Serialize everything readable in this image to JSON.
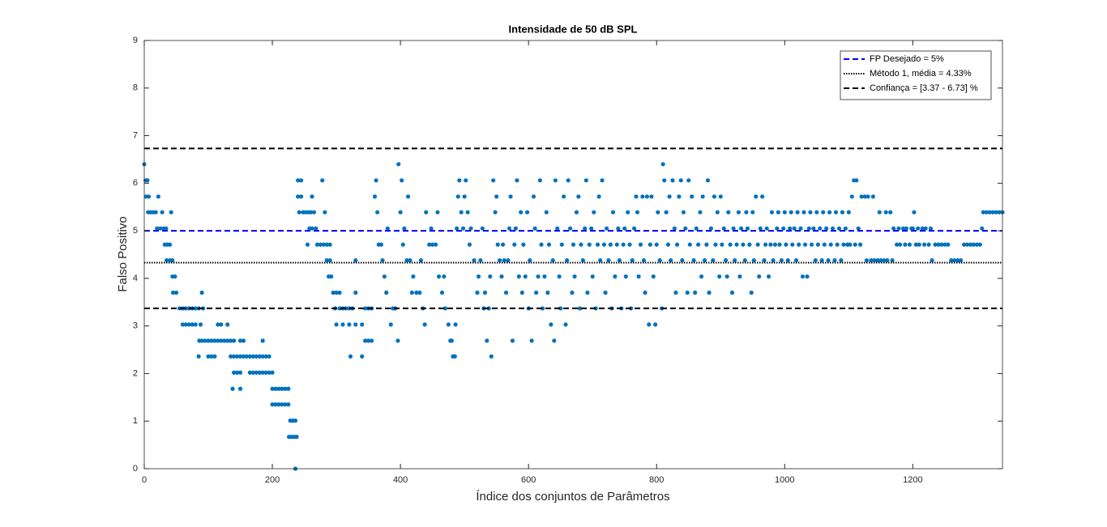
{
  "chart_data": {
    "type": "scatter",
    "title": "Intensidade de 50 dB SPL",
    "x_label": "Índice dos conjuntos de Parâmetros",
    "y_label": "Falso Positivo",
    "color": "#0072bd",
    "xlim": [
      0,
      1340
    ],
    "ylim": [
      0,
      9
    ],
    "xticks": [
      0,
      200,
      400,
      600,
      800,
      1000,
      1200
    ],
    "yticks": [
      0,
      1,
      2,
      3,
      4,
      5,
      6,
      7,
      8,
      9
    ],
    "legend_position": "top-right",
    "reference_lines": [
      {
        "name": "FP Desejado = 5%",
        "values": [
          5
        ],
        "color": "#0000ff",
        "style": "dashed"
      },
      {
        "name": "Método 1, média = 4.33%",
        "values": [
          4.33
        ],
        "color": "#000000",
        "style": "dotted"
      },
      {
        "name": "Confiança = [3.37 - 6.73] %",
        "values": [
          3.37,
          6.73
        ],
        "color": "#000000",
        "style": "dashed"
      }
    ],
    "x": [
      0,
      2,
      5,
      3,
      7,
      6,
      10,
      14,
      18,
      22,
      20,
      25,
      30,
      34,
      28,
      32,
      36,
      40,
      35,
      40,
      44,
      42,
      44,
      48,
      45,
      50,
      55,
      60,
      65,
      70,
      75,
      80,
      85,
      60,
      65,
      70,
      75,
      80,
      88,
      90,
      92,
      86,
      90,
      95,
      85,
      100,
      105,
      110,
      100,
      105,
      110,
      115,
      120,
      125,
      130,
      135,
      140,
      115,
      120,
      130,
      135,
      140,
      145,
      150,
      155,
      160,
      165,
      170,
      175,
      180,
      185,
      190,
      195,
      140,
      145,
      150,
      138,
      150,
      150,
      155,
      165,
      170,
      175,
      180,
      185,
      190,
      195,
      200,
      185,
      200,
      205,
      210,
      215,
      220,
      225,
      200,
      205,
      210,
      215,
      220,
      225,
      228,
      232,
      236,
      226,
      230,
      234,
      238,
      236,
      240,
      245,
      240,
      245,
      242,
      248,
      252,
      256,
      260,
      265,
      262,
      258,
      262,
      268,
      255,
      270,
      275,
      280,
      285,
      290,
      278,
      282,
      285,
      290,
      288,
      292,
      295,
      300,
      305,
      298,
      305,
      310,
      315,
      320,
      325,
      300,
      310,
      320,
      330,
      340,
      322,
      330,
      330,
      340,
      345,
      345,
      350,
      350,
      355,
      355,
      360,
      362,
      364,
      366,
      370,
      372,
      375,
      378,
      380,
      385,
      388,
      392,
      396,
      397,
      400,
      402,
      404,
      406,
      410,
      412,
      415,
      418,
      420,
      425,
      430,
      432,
      435,
      438,
      440,
      445,
      448,
      450,
      455,
      458,
      460,
      465,
      468,
      470,
      475,
      478,
      480,
      482,
      485,
      486,
      488,
      490,
      492,
      495,
      498,
      500,
      502,
      505,
      508,
      510,
      515,
      520,
      522,
      525,
      528,
      530,
      532,
      535,
      538,
      540,
      542,
      545,
      548,
      550,
      552,
      555,
      558,
      560,
      562,
      565,
      568,
      570,
      572,
      575,
      578,
      580,
      582,
      585,
      588,
      590,
      592,
      595,
      598,
      600,
      602,
      605,
      608,
      610,
      612,
      615,
      618,
      620,
      622,
      625,
      628,
      630,
      632,
      635,
      638,
      640,
      642,
      645,
      648,
      650,
      652,
      655,
      658,
      660,
      662,
      665,
      668,
      670,
      672,
      675,
      678,
      680,
      682,
      685,
      688,
      690,
      692,
      695,
      698,
      700,
      702,
      705,
      708,
      710,
      712,
      715,
      718,
      720,
      722,
      725,
      728,
      730,
      732,
      735,
      738,
      740,
      742,
      745,
      748,
      750,
      752,
      755,
      758,
      760,
      762,
      765,
      768,
      770,
      772,
      775,
      778,
      780,
      782,
      785,
      788,
      790,
      792,
      795,
      798,
      800,
      802,
      805,
      808,
      810,
      812,
      815,
      818,
      820,
      822,
      825,
      828,
      830,
      832,
      835,
      838,
      840,
      842,
      845,
      848,
      850,
      852,
      855,
      858,
      860,
      862,
      865,
      868,
      870,
      872,
      875,
      878,
      880,
      882,
      885,
      888,
      890,
      892,
      895,
      898,
      900,
      902,
      905,
      908,
      910,
      912,
      915,
      918,
      920,
      922,
      925,
      928,
      930,
      932,
      935,
      938,
      940,
      942,
      945,
      948,
      950,
      952,
      955,
      958,
      960,
      962,
      965,
      968,
      970,
      972,
      975,
      978,
      980,
      982,
      985,
      988,
      990,
      992,
      995,
      998,
      1000,
      1002,
      1005,
      1008,
      1010,
      1012,
      1015,
      1018,
      1020,
      1022,
      1025,
      1028,
      1030,
      1032,
      1035,
      1038,
      1040,
      1042,
      1045,
      1048,
      1050,
      1052,
      1055,
      1058,
      1060,
      1062,
      1065,
      1068,
      1070,
      1072,
      1075,
      1078,
      1080,
      1082,
      1085,
      1088,
      1090,
      1092,
      1095,
      1098,
      1100,
      1102,
      1105,
      1108,
      1110,
      1112,
      1115,
      1118,
      1120,
      1125,
      1128,
      1130,
      1135,
      1138,
      1140,
      1145,
      1148,
      1150,
      1155,
      1158,
      1160,
      1165,
      1168,
      1170,
      1175,
      1178,
      1180,
      1185,
      1188,
      1190,
      1195,
      1198,
      1200,
      1202,
      1205,
      1208,
      1210,
      1215,
      1218,
      1220,
      1225,
      1228,
      1230,
      1235,
      1240,
      1245,
      1250,
      1255,
      1260,
      1265,
      1270,
      1275,
      1280,
      1285,
      1290,
      1295,
      1300,
      1305,
      1308,
      1310,
      1315,
      1320,
      1325,
      1330,
      1335,
      1340
    ],
    "values": [
      6.4,
      6.06,
      6.06,
      5.72,
      5.72,
      5.39,
      5.39,
      5.39,
      5.39,
      5.72,
      5.05,
      5.05,
      5.05,
      5.05,
      5.39,
      4.71,
      4.71,
      4.71,
      4.38,
      4.38,
      4.38,
      5.39,
      4.04,
      4.04,
      3.7,
      3.7,
      3.37,
      3.37,
      3.37,
      3.37,
      3.37,
      3.37,
      3.37,
      3.03,
      3.03,
      3.03,
      3.03,
      3.03,
      3.03,
      3.7,
      3.37,
      2.69,
      2.69,
      2.69,
      2.36,
      2.36,
      2.36,
      2.36,
      2.69,
      2.69,
      2.69,
      2.69,
      2.69,
      2.69,
      2.69,
      2.69,
      2.69,
      3.03,
      3.03,
      3.03,
      2.36,
      2.36,
      2.36,
      2.36,
      2.36,
      2.36,
      2.36,
      2.36,
      2.36,
      2.36,
      2.36,
      2.36,
      2.36,
      2.02,
      2.02,
      2.02,
      1.68,
      1.68,
      2.69,
      2.69,
      2.02,
      2.02,
      2.02,
      2.02,
      2.02,
      2.02,
      2.02,
      2.02,
      2.69,
      1.68,
      1.68,
      1.68,
      1.68,
      1.68,
      1.68,
      1.35,
      1.35,
      1.35,
      1.35,
      1.35,
      1.35,
      1.01,
      1.01,
      1.01,
      0.67,
      0.67,
      0.67,
      0.67,
      0,
      6.06,
      6.06,
      5.72,
      5.72,
      5.39,
      5.39,
      5.39,
      5.39,
      5.39,
      5.39,
      5.72,
      5.05,
      5.05,
      5.05,
      4.71,
      4.71,
      4.71,
      4.71,
      4.71,
      4.71,
      6.06,
      5.39,
      4.38,
      4.38,
      4.04,
      4.04,
      3.7,
      3.7,
      3.7,
      3.37,
      3.37,
      3.37,
      3.37,
      3.37,
      3.37,
      3.03,
      3.03,
      3.03,
      3.03,
      3.03,
      2.36,
      3.7,
      4.38,
      2.36,
      2.69,
      3.37,
      3.37,
      2.69,
      3.37,
      2.69,
      5.72,
      6.06,
      5.39,
      4.71,
      4.71,
      4.38,
      4.04,
      3.7,
      5.05,
      3.03,
      3.37,
      3.37,
      2.69,
      6.4,
      5.39,
      6.06,
      4.71,
      5.05,
      4.38,
      5.72,
      4.38,
      3.7,
      4.04,
      3.7,
      3.7,
      4.38,
      3.37,
      3.03,
      5.39,
      4.71,
      5.05,
      4.71,
      4.71,
      5.39,
      4.04,
      3.7,
      4.04,
      3.37,
      3.03,
      2.69,
      2.69,
      2.36,
      2.36,
      3.03,
      5.05,
      5.72,
      6.06,
      5.39,
      5.05,
      5.72,
      6.06,
      5.39,
      4.71,
      5.05,
      4.38,
      3.7,
      4.04,
      4.38,
      5.05,
      3.37,
      3.7,
      2.69,
      3.37,
      4.04,
      2.36,
      6.06,
      5.39,
      5.72,
      4.71,
      4.38,
      4.04,
      4.71,
      4.38,
      3.7,
      4.38,
      5.05,
      5.72,
      2.69,
      4.71,
      5.05,
      6.06,
      4.04,
      5.39,
      3.7,
      4.71,
      4.04,
      5.39,
      3.37,
      4.38,
      2.69,
      5.72,
      5.05,
      3.7,
      4.04,
      6.06,
      4.71,
      3.37,
      4.04,
      5.39,
      3.7,
      4.71,
      3.03,
      4.38,
      2.69,
      6.06,
      5.05,
      4.04,
      3.37,
      4.71,
      5.72,
      3.03,
      4.38,
      6.06,
      5.05,
      3.7,
      4.71,
      4.04,
      5.39,
      5.72,
      3.37,
      4.71,
      4.38,
      5.05,
      6.06,
      3.7,
      4.71,
      5.05,
      4.04,
      5.39,
      3.37,
      4.71,
      5.72,
      4.38,
      6.06,
      4.71,
      3.7,
      5.05,
      4.38,
      4.71,
      3.37,
      5.39,
      4.04,
      4.71,
      5.05,
      4.38,
      3.37,
      4.71,
      5.05,
      4.04,
      5.39,
      4.71,
      3.37,
      4.38,
      5.05,
      5.72,
      5.39,
      4.04,
      4.71,
      5.72,
      4.38,
      3.7,
      5.72,
      3.03,
      4.71,
      5.72,
      4.04,
      3.03,
      4.71,
      5.39,
      4.38,
      3.37,
      6.4,
      6.06,
      5.39,
      4.71,
      5.72,
      4.38,
      6.06,
      5.05,
      3.7,
      4.71,
      5.72,
      6.06,
      4.38,
      5.39,
      5.05,
      3.7,
      6.06,
      4.71,
      5.72,
      4.38,
      3.7,
      5.05,
      4.71,
      5.39,
      4.04,
      5.72,
      4.38,
      4.71,
      6.06,
      3.7,
      5.05,
      4.38,
      5.72,
      4.71,
      5.39,
      4.04,
      5.72,
      4.71,
      5.05,
      4.38,
      4.04,
      5.39,
      4.71,
      3.7,
      5.05,
      4.38,
      4.71,
      5.39,
      4.04,
      5.05,
      4.71,
      4.38,
      5.39,
      5.05,
      4.71,
      3.7,
      5.39,
      4.38,
      5.72,
      4.71,
      4.04,
      5.05,
      5.72,
      4.38,
      4.71,
      5.05,
      4.04,
      4.71,
      5.39,
      4.38,
      4.71,
      5.05,
      5.39,
      4.71,
      4.38,
      5.05,
      5.39,
      4.71,
      4.38,
      5.05,
      5.39,
      4.71,
      5.05,
      4.38,
      5.39,
      4.71,
      5.05,
      4.04,
      5.39,
      4.71,
      4.04,
      5.05,
      5.39,
      4.71,
      5.05,
      4.38,
      5.39,
      4.71,
      5.05,
      4.38,
      5.39,
      4.71,
      5.05,
      4.38,
      5.39,
      4.71,
      5.05,
      4.38,
      5.39,
      4.71,
      5.05,
      4.38,
      5.39,
      4.71,
      5.05,
      4.71,
      5.39,
      4.71,
      5.72,
      6.06,
      4.71,
      6.06,
      5.05,
      4.71,
      5.72,
      5.72,
      4.38,
      5.72,
      4.38,
      5.72,
      4.38,
      4.38,
      5.39,
      4.38,
      4.38,
      5.39,
      4.38,
      5.39,
      4.38,
      5.05,
      4.71,
      5.05,
      4.71,
      5.05,
      4.71,
      5.05,
      4.71,
      5.05,
      5.05,
      5.39,
      4.71,
      5.05,
      4.71,
      5.05,
      4.71,
      5.05,
      4.71,
      5.05,
      4.38,
      4.71,
      4.71,
      4.71,
      4.71,
      4.71,
      4.38,
      4.38,
      4.38,
      4.38,
      4.71,
      4.71,
      4.71,
      4.71,
      4.71,
      4.71,
      5.05,
      5.39,
      5.39,
      5.39,
      5.39,
      5.39,
      5.39,
      5.39
    ]
  }
}
